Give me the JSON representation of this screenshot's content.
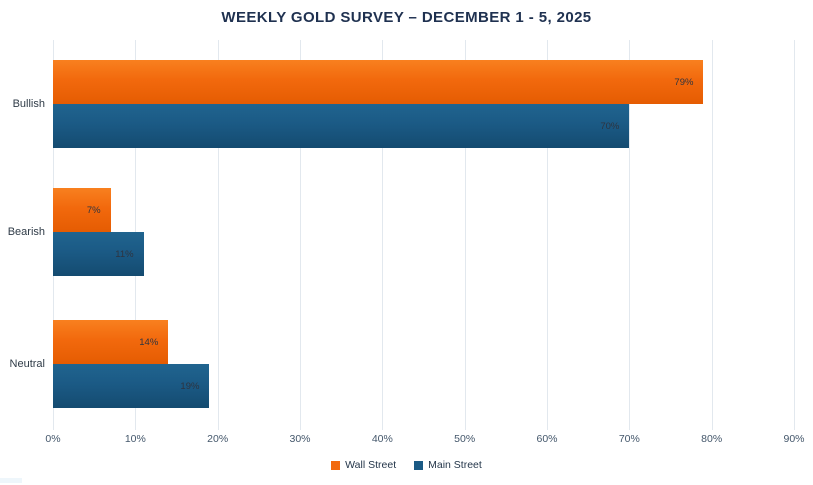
{
  "title": "WEEKLY GOLD SURVEY – DECEMBER 1 - 5, 2025",
  "chart_data": {
    "type": "bar",
    "orientation": "horizontal",
    "title": "WEEKLY GOLD SURVEY – DECEMBER 1 - 5, 2025",
    "categories": [
      "Bullish",
      "Bearish",
      "Neutral"
    ],
    "series": [
      {
        "name": "Wall Street",
        "color": "#f2690d",
        "values": [
          79,
          7,
          14
        ],
        "value_labels": [
          "79%",
          "7%",
          "14%"
        ]
      },
      {
        "name": "Main Street",
        "color": "#1b5a85",
        "values": [
          70,
          11,
          19
        ],
        "value_labels": [
          "70%",
          "11%",
          "19%"
        ]
      }
    ],
    "xlim": [
      0,
      90
    ],
    "x_tick_labels": [
      "0%",
      "10%",
      "20%",
      "30%",
      "40%",
      "50%",
      "60%",
      "70%",
      "80%",
      "90%"
    ],
    "grid": true,
    "legend_position": "bottom"
  },
  "colors": {
    "title_text": "#1f3150",
    "axis_text": "#44576b",
    "category_text": "#2f3b47",
    "gridline": "#e2e8ee",
    "wall_street_orange": "#f2690d",
    "main_street_blue": "#1b5a85",
    "background": "#ffffff"
  }
}
